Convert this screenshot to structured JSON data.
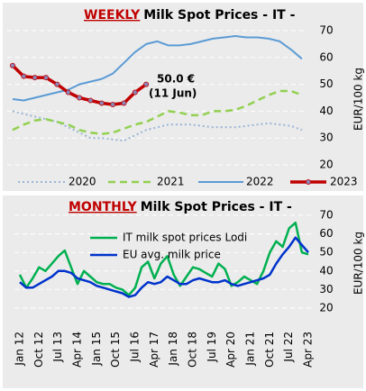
{
  "chart_data": [
    {
      "type": "line",
      "title_highlight": "WEEKLY",
      "title": "Milk Spot Prices - IT -",
      "y_label": "EUR/100 kg",
      "categories": [
        null,
        null,
        null,
        null,
        null,
        null,
        null,
        null,
        null,
        null,
        null,
        null,
        null,
        null,
        null,
        null,
        null,
        null,
        null,
        null,
        null,
        null,
        null,
        null,
        null,
        null,
        null
      ],
      "series": [
        {
          "name": "2020",
          "color": "#9ab5d6",
          "style": "dotted",
          "values": [
            40,
            39,
            38,
            37,
            36,
            34,
            32,
            30,
            30,
            29.5,
            29,
            31,
            33,
            34,
            35,
            35,
            35,
            34.5,
            34,
            34,
            34,
            34.5,
            35,
            35.5,
            35,
            34.5,
            33
          ]
        },
        {
          "name": "2021",
          "color": "#92d050",
          "style": "dashed",
          "values": [
            33,
            35,
            36.5,
            37,
            36,
            35,
            33,
            32,
            31.5,
            32,
            33.5,
            35,
            36,
            38,
            40,
            39.5,
            38.5,
            38.5,
            40,
            40,
            40.5,
            42,
            44,
            46,
            47.5,
            47.5,
            46
          ]
        },
        {
          "name": "2022",
          "color": "#5b9bd5",
          "style": "solid",
          "values": [
            44.5,
            44,
            45,
            46,
            47,
            48,
            50,
            51,
            52,
            54,
            58,
            62,
            65,
            66,
            64.5,
            64.5,
            65,
            66,
            67,
            67.5,
            68,
            67.5,
            67.5,
            67,
            66,
            63,
            59.5
          ]
        },
        {
          "name": "2023",
          "color": "#c00000",
          "style": "solid",
          "markers": true,
          "values": [
            57,
            53,
            52.5,
            52.5,
            50,
            47,
            45,
            44,
            43,
            42.5,
            43,
            47,
            50,
            null,
            null,
            null,
            null,
            null,
            null,
            null,
            null,
            null,
            null,
            null,
            null,
            null,
            null
          ]
        }
      ],
      "annotations": [
        "50.0 €",
        "(11 Jun)"
      ],
      "ylim": [
        20,
        70
      ],
      "yticks": [
        20,
        30,
        40,
        50,
        60,
        70
      ],
      "grid": true
    },
    {
      "type": "line",
      "title_highlight": "MONTHLY",
      "title": "Milk Spot Prices - IT -",
      "y_label": "EUR/100 kg",
      "categories": [
        "Jan 12",
        null,
        null,
        "Oct 12",
        null,
        null,
        "Jul 13",
        null,
        null,
        "Apr 14",
        null,
        null,
        "Jan 15",
        null,
        null,
        "Oct 15",
        null,
        null,
        "Jul 16",
        null,
        null,
        "Apr 17",
        null,
        null,
        "Jan 18",
        null,
        null,
        "Oct 18",
        null,
        null,
        "Jul 19",
        null,
        null,
        "Apr 20",
        null,
        null,
        "Jan 21",
        null,
        null,
        "Oct 21",
        null,
        null,
        "Jul 22",
        null,
        null,
        "Apr 23"
      ],
      "series": [
        {
          "name": "IT milk spot prices Lodi",
          "color": "#00b050",
          "style": "solid",
          "values": [
            38,
            31,
            36,
            42,
            40,
            44,
            48,
            51,
            42,
            33,
            40,
            37,
            34,
            33,
            33,
            31,
            30,
            27,
            31,
            42,
            45,
            36,
            44,
            48,
            38,
            32,
            37,
            42,
            41,
            39,
            37,
            44,
            41,
            32,
            34,
            37,
            35,
            33,
            40,
            50,
            56,
            53,
            63,
            66,
            50,
            49
          ]
        },
        {
          "name": "EU avg. milk price",
          "color": "#0033cc",
          "style": "solid",
          "values": [
            34,
            31,
            31,
            33,
            35,
            37,
            40,
            40,
            39,
            36,
            35,
            34,
            32,
            31,
            30,
            29,
            28,
            26,
            27,
            31,
            34,
            33,
            34,
            37,
            35,
            33,
            33,
            35,
            36,
            35,
            34,
            34,
            35,
            33,
            32,
            33,
            34,
            35,
            36,
            38,
            44,
            49,
            53,
            58,
            54,
            50
          ]
        }
      ],
      "ylim": [
        20,
        70
      ],
      "yticks": [
        20,
        30,
        40,
        50,
        60,
        70
      ],
      "grid": true
    }
  ]
}
